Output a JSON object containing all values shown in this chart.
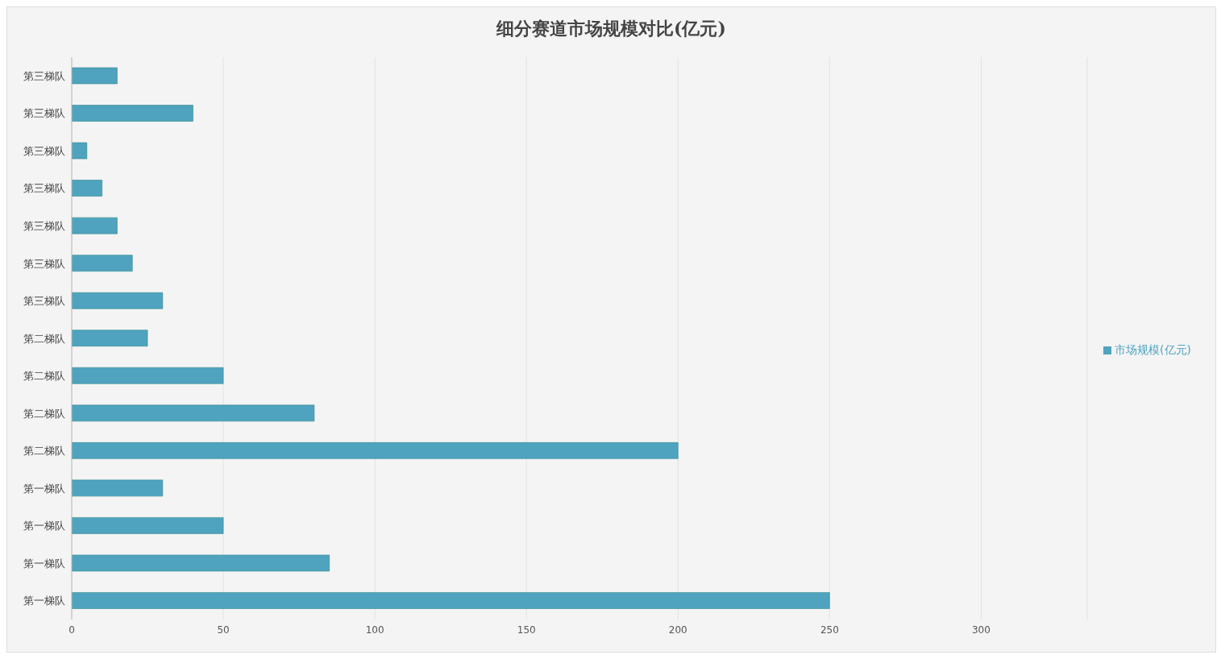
{
  "chart_data": {
    "type": "bar",
    "orientation": "horizontal",
    "title": "细分赛道市场规模对比(亿元)",
    "categories": [
      "第三梯队",
      "第三梯队",
      "第三梯队",
      "第三梯队",
      "第三梯队",
      "第三梯队",
      "第三梯队",
      "第二梯队",
      "第二梯队",
      "第二梯队",
      "第二梯队",
      "第一梯队",
      "第一梯队",
      "第一梯队",
      "第一梯队"
    ],
    "series": [
      {
        "name": "市场规模(亿元)",
        "color": "#4fa3bf",
        "values": [
          15,
          40,
          5,
          10,
          15,
          20,
          30,
          25,
          50,
          80,
          200,
          30,
          50,
          85,
          250
        ]
      }
    ],
    "xlim": [
      0,
      335
    ],
    "xticks": [
      0,
      50,
      100,
      150,
      200,
      250,
      300
    ],
    "grid": "x",
    "legend": "right"
  }
}
